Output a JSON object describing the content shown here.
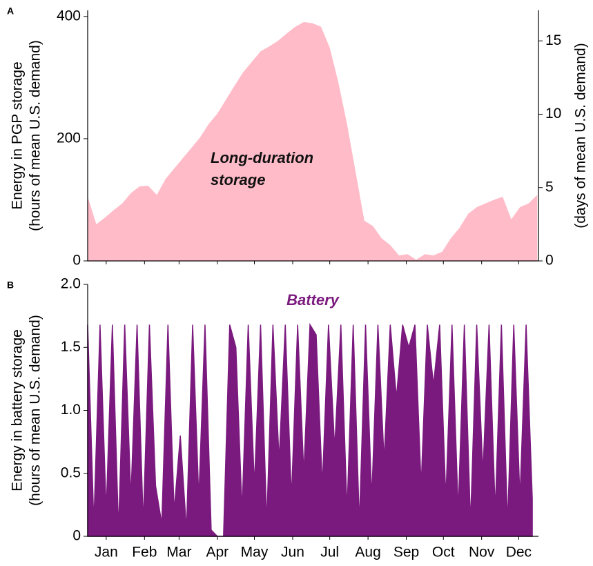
{
  "chart_data": [
    {
      "type": "area",
      "panel_label": "A",
      "ylabel": [
        "Energy in PGP storage",
        "(hours of mean U.S. demand)"
      ],
      "y2label": "(days of mean U.S. demand)",
      "annotation": [
        "Long-duration",
        "storage"
      ],
      "color": "#ffbcc8",
      "x": [
        0,
        7,
        14,
        21,
        28,
        35,
        42,
        49,
        56,
        63,
        70,
        77,
        84,
        91,
        98,
        105,
        112,
        119,
        126,
        133,
        140,
        147,
        154,
        161,
        168,
        175,
        182,
        189,
        196,
        203,
        210,
        217,
        224,
        231,
        238,
        245,
        252,
        259,
        266,
        273,
        280,
        287,
        294,
        301,
        308,
        315,
        322,
        329,
        336,
        343,
        350,
        357,
        364
      ],
      "values": [
        105,
        60,
        71,
        83,
        94,
        111,
        122,
        123,
        108,
        134,
        151,
        168,
        185,
        202,
        224,
        241,
        264,
        287,
        309,
        326,
        343,
        351,
        360,
        372,
        383,
        391,
        389,
        383,
        349,
        292,
        224,
        145,
        66,
        57,
        37,
        26,
        9,
        11,
        2,
        11,
        9,
        15,
        37,
        54,
        77,
        88,
        94,
        100,
        105,
        68,
        88,
        94,
        108
      ],
      "xlim": [
        0,
        365
      ],
      "ylim": [
        0,
        410
      ],
      "yticks": [
        0,
        200,
        400
      ],
      "y2lim": [
        0,
        17.08
      ],
      "y2ticks": [
        0,
        5,
        10,
        15
      ]
    },
    {
      "type": "area",
      "panel_label": "B",
      "ylabel": [
        "Energy in battery storage",
        "(hours of mean U.S. demand)"
      ],
      "annotation": [
        "Battery"
      ],
      "color": "#7b1a7e",
      "x": [
        0,
        5,
        10,
        15,
        20,
        25,
        30,
        35,
        40,
        45,
        50,
        55,
        60,
        65,
        70,
        75,
        80,
        85,
        90,
        95,
        100,
        105,
        110,
        115,
        120,
        125,
        130,
        135,
        140,
        145,
        150,
        155,
        160,
        165,
        170,
        175,
        180,
        185,
        190,
        195,
        200,
        205,
        210,
        215,
        220,
        225,
        230,
        235,
        240,
        245,
        250,
        255,
        260,
        265,
        270,
        275,
        280,
        285,
        290,
        295,
        300,
        305,
        310,
        315,
        320,
        325,
        330,
        335,
        340,
        345,
        350,
        355,
        360
      ],
      "values": [
        1.68,
        0.1,
        1.68,
        0.2,
        1.68,
        0.05,
        1.68,
        0.3,
        1.68,
        0.1,
        1.68,
        0.4,
        0.1,
        1.68,
        0.2,
        0.8,
        0.05,
        1.68,
        0.3,
        1.68,
        0.05,
        0.0,
        0.0,
        1.68,
        1.5,
        0.2,
        1.68,
        0.4,
        1.68,
        0.1,
        1.68,
        0.6,
        1.68,
        0.3,
        1.68,
        0.5,
        1.68,
        1.6,
        0.4,
        1.68,
        0.7,
        1.68,
        0.2,
        1.68,
        0.1,
        1.68,
        0.3,
        1.68,
        0.6,
        1.68,
        1.1,
        1.68,
        1.5,
        1.68,
        0.4,
        1.68,
        1.2,
        1.68,
        0.3,
        1.68,
        0.2,
        1.68,
        0.1,
        1.68,
        0.5,
        1.68,
        0.2,
        1.68,
        0.1,
        1.68,
        0.3,
        1.68,
        0.3
      ],
      "xlim": [
        0,
        365
      ],
      "xticks": [
        {
          "value": 15,
          "label": "Jan"
        },
        {
          "value": 46,
          "label": "Feb"
        },
        {
          "value": 74,
          "label": "Mar"
        },
        {
          "value": 105,
          "label": "Apr"
        },
        {
          "value": 135,
          "label": "May"
        },
        {
          "value": 166,
          "label": "Jun"
        },
        {
          "value": 196,
          "label": "Jul"
        },
        {
          "value": 227,
          "label": "Aug"
        },
        {
          "value": 258,
          "label": "Sep"
        },
        {
          "value": 288,
          "label": "Oct"
        },
        {
          "value": 319,
          "label": "Nov"
        },
        {
          "value": 349,
          "label": "Dec"
        }
      ],
      "ylim": [
        0,
        2.0
      ],
      "yticks": [
        0,
        0.5,
        {
          "value": 1.0,
          "label": "1.0"
        },
        1.5,
        {
          "value": 2.0,
          "label": "2.0"
        }
      ]
    }
  ]
}
